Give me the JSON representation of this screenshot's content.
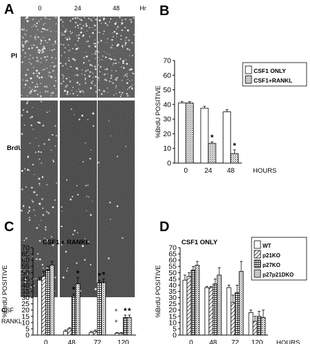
{
  "panel_a": {
    "letter": "A",
    "time_labels": [
      "0",
      "24",
      "48"
    ],
    "time_unit": "Hr",
    "row_labels": [
      "PI",
      "BrdU"
    ],
    "condition_rows": [
      {
        "label": "CSF",
        "marks": [
          "+",
          "+",
          "+"
        ]
      },
      {
        "label": "RANKL",
        "marks": [
          "-",
          "+",
          "+"
        ]
      }
    ]
  },
  "chart_data": [
    {
      "panel": "B",
      "type": "bar",
      "title": "",
      "xlabel": "HOURS",
      "ylabel": "%BrdU POSITIVE",
      "categories": [
        "0",
        "24",
        "48"
      ],
      "ylim": [
        0,
        70
      ],
      "yticks": [
        0,
        10,
        20,
        30,
        40,
        50,
        60,
        70
      ],
      "legend_position": "top-right",
      "series": [
        {
          "name": "CSF1 ONLY",
          "values": [
            41,
            37.5,
            35
          ],
          "errors": [
            1,
            1.2,
            1.5
          ],
          "fill": "open"
        },
        {
          "name": "CSF1+RANKL",
          "values": [
            41,
            13.5,
            6.5
          ],
          "errors": [
            1,
            1,
            2.5
          ],
          "fill": "dotted"
        }
      ],
      "significance": [
        {
          "category": "24",
          "series": "CSF1+RANKL",
          "mark": "*"
        },
        {
          "category": "48",
          "series": "CSF1+RANKL",
          "mark": "*"
        }
      ]
    },
    {
      "panel": "C",
      "type": "bar",
      "title": "CSF1 + RANKL",
      "xlabel": "",
      "ylabel": "%BrdU POSITIVE",
      "categories": [
        "0",
        "48",
        "72",
        "120"
      ],
      "ylim": [
        0,
        70
      ],
      "yticks": [
        0,
        5,
        10,
        15,
        20,
        25,
        30,
        35,
        40,
        45,
        50,
        55,
        60,
        65,
        70
      ],
      "series": [
        {
          "name": "WT",
          "values": [
            44,
            3,
            2,
            1.5
          ],
          "errors": [
            2,
            1,
            1,
            0.5
          ],
          "fill": "open"
        },
        {
          "name": "p21KO",
          "values": [
            47,
            5,
            3,
            1.5
          ],
          "errors": [
            4,
            1,
            1,
            0.5
          ],
          "fill": "hatch"
        },
        {
          "name": "p27KO",
          "values": [
            52,
            31,
            42,
            14
          ],
          "errors": [
            3,
            2,
            2,
            2
          ],
          "fill": "grid"
        },
        {
          "name": "p27p21DKO",
          "values": [
            56,
            41,
            42,
            14
          ],
          "errors": [
            3,
            5,
            3,
            2
          ],
          "fill": "dotted"
        }
      ],
      "significance": [
        {
          "category": "48",
          "series": "p27KO",
          "mark": "*"
        },
        {
          "category": "48",
          "series": "p27p21DKO",
          "mark": "*"
        },
        {
          "category": "72",
          "series": "p27KO",
          "mark": "*"
        },
        {
          "category": "72",
          "series": "p27p21DKO",
          "mark": "*"
        },
        {
          "category": "120",
          "series": "p27KO",
          "mark": "*"
        },
        {
          "category": "120",
          "series": "p27p21DKO",
          "mark": "*"
        }
      ]
    },
    {
      "panel": "D",
      "type": "bar",
      "title": "CSF1 ONLY",
      "xlabel": "HOURS",
      "ylabel": "%BrdU POSITIVE",
      "categories": [
        "0",
        "48",
        "72",
        "120"
      ],
      "ylim": [
        0,
        70
      ],
      "yticks": [
        0,
        5,
        10,
        15,
        20,
        25,
        30,
        35,
        40,
        45,
        50,
        55,
        60,
        65,
        70
      ],
      "legend_position": "top-right",
      "series": [
        {
          "name": "WT",
          "values": [
            44,
            38,
            38,
            18
          ],
          "errors": [
            4,
            1,
            2,
            2
          ],
          "fill": "open"
        },
        {
          "name": "p21KO",
          "values": [
            47,
            38,
            26,
            11
          ],
          "errors": [
            3,
            1,
            6,
            4
          ],
          "fill": "hatch"
        },
        {
          "name": "p27KO",
          "values": [
            52,
            41,
            34,
            15
          ],
          "errors": [
            3,
            4,
            6,
            4
          ],
          "fill": "grid"
        },
        {
          "name": "p27p21DKO",
          "values": [
            56,
            48,
            51,
            14
          ],
          "errors": [
            3,
            6,
            8,
            6
          ],
          "fill": "dotted"
        }
      ]
    }
  ]
}
